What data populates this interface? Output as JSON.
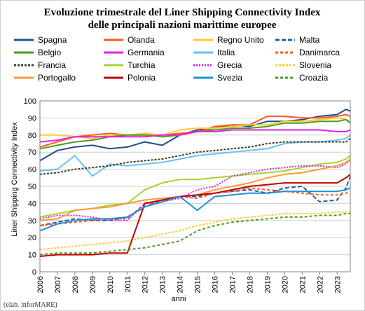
{
  "credit": "(elab. inforMARE)",
  "chart_data": {
    "type": "line",
    "title": "Evoluzione trimestrale del Liner Shipping Connectivity Index",
    "subtitle": "delle principali nazioni marittime europee",
    "xlabel": "anni",
    "ylabel": "Liner Shipping Connectivity Index",
    "ylim": [
      0,
      100
    ],
    "yticks": [
      0,
      10,
      20,
      30,
      40,
      50,
      60,
      70,
      80,
      90,
      100
    ],
    "xticks": [
      "2006",
      "2007",
      "2008",
      "2009",
      "2010",
      "2011",
      "2012",
      "2013",
      "2014",
      "2015",
      "2016",
      "2017",
      "2018",
      "2019",
      "2020",
      "2021",
      "2022",
      "2023"
    ],
    "xlim": [
      2006,
      2023.75
    ],
    "grid": true,
    "legend_position": "top",
    "series": [
      {
        "name": "Spagna",
        "color": "#1f4e8c",
        "dash": "",
        "x": [
          2006,
          2007,
          2008,
          2009,
          2010,
          2011,
          2012,
          2013,
          2014,
          2015,
          2016,
          2017,
          2018,
          2019,
          2020,
          2021,
          2022,
          2023,
          2023.5,
          2023.75
        ],
        "values": [
          65,
          71,
          73,
          74,
          72,
          73,
          76,
          74,
          80,
          83,
          84,
          86,
          85,
          88,
          88,
          89,
          91,
          92,
          95,
          94
        ]
      },
      {
        "name": "Olanda",
        "color": "#ff5a1f",
        "dash": "",
        "x": [
          2006,
          2007,
          2008,
          2009,
          2010,
          2011,
          2012,
          2013,
          2014,
          2015,
          2016,
          2017,
          2018,
          2019,
          2020,
          2021,
          2022,
          2023,
          2023.5,
          2023.75
        ],
        "values": [
          73,
          76,
          79,
          80,
          81,
          80,
          80,
          80,
          81,
          82,
          85,
          86,
          86,
          91,
          91,
          90,
          90,
          91,
          92,
          91
        ]
      },
      {
        "name": "Regno Unito",
        "color": "#ffcc33",
        "dash": "",
        "x": [
          2006,
          2007,
          2008,
          2009,
          2010,
          2011,
          2012,
          2013,
          2014,
          2015,
          2016,
          2017,
          2018,
          2019,
          2020,
          2021,
          2022,
          2023,
          2023.5,
          2023.75
        ],
        "values": [
          80,
          80,
          79,
          78,
          80,
          80,
          81,
          80,
          83,
          84,
          84,
          85,
          86,
          86,
          88,
          88,
          89,
          90,
          89,
          88
        ]
      },
      {
        "name": "Malta",
        "color": "#1f5fa6",
        "dash": "6,3",
        "x": [
          2006,
          2007,
          2008,
          2009,
          2010,
          2011,
          2012,
          2013,
          2014,
          2015,
          2016,
          2017,
          2018,
          2019,
          2020,
          2021,
          2022,
          2023,
          2023.5,
          2023.75
        ],
        "values": [
          27,
          29,
          31,
          30,
          30,
          32,
          38,
          42,
          44,
          44,
          46,
          47,
          48,
          46,
          49,
          50,
          41,
          42,
          49,
          56
        ]
      },
      {
        "name": "Belgio",
        "color": "#4e9a1f",
        "dash": "",
        "x": [
          2006,
          2007,
          2008,
          2009,
          2010,
          2011,
          2012,
          2013,
          2014,
          2015,
          2016,
          2017,
          2018,
          2019,
          2020,
          2021,
          2022,
          2023,
          2023.5,
          2023.75
        ],
        "values": [
          72,
          74,
          76,
          77,
          79,
          80,
          80,
          79,
          80,
          82,
          83,
          84,
          84,
          85,
          87,
          87,
          88,
          88,
          89,
          87
        ]
      },
      {
        "name": "Germania",
        "color": "#e61ee6",
        "dash": "",
        "x": [
          2006,
          2007,
          2008,
          2009,
          2010,
          2011,
          2012,
          2013,
          2014,
          2015,
          2016,
          2017,
          2018,
          2019,
          2020,
          2021,
          2022,
          2023,
          2023.5,
          2023.75
        ],
        "values": [
          76,
          77,
          79,
          79,
          79,
          79,
          79,
          80,
          80,
          82,
          82,
          83,
          83,
          83,
          83,
          83,
          83,
          82,
          82,
          83
        ]
      },
      {
        "name": "Italia",
        "color": "#66c2ff",
        "dash": "",
        "x": [
          2006,
          2007,
          2008,
          2009,
          2010,
          2011,
          2012,
          2013,
          2014,
          2015,
          2016,
          2017,
          2018,
          2019,
          2020,
          2021,
          2022,
          2023,
          2023.5,
          2023.75
        ],
        "values": [
          59,
          60,
          68,
          56,
          63,
          62,
          63,
          64,
          66,
          68,
          69,
          70,
          71,
          72,
          75,
          76,
          76,
          77,
          78,
          80
        ]
      },
      {
        "name": "Danimarca",
        "color": "#ff5a1f",
        "dash": "4,3",
        "x": [
          2006,
          2007,
          2008,
          2009,
          2010,
          2011,
          2012,
          2013,
          2014,
          2015,
          2016,
          2017,
          2018,
          2019,
          2020,
          2021,
          2022,
          2023,
          2023.5,
          2023.75
        ],
        "values": [
          27,
          28,
          29,
          30,
          31,
          31,
          40,
          41,
          44,
          43,
          46,
          47,
          49,
          48,
          47,
          46,
          45,
          45,
          46,
          47
        ]
      },
      {
        "name": "Francia",
        "color": "#3d3d1f",
        "dash": "3,2",
        "x": [
          2006,
          2007,
          2008,
          2009,
          2010,
          2011,
          2012,
          2013,
          2014,
          2015,
          2016,
          2017,
          2018,
          2019,
          2020,
          2021,
          2022,
          2023,
          2023.5,
          2023.75
        ],
        "values": [
          57,
          58,
          60,
          61,
          62,
          64,
          65,
          66,
          68,
          70,
          71,
          72,
          73,
          75,
          76,
          76,
          76,
          76,
          76,
          78
        ]
      },
      {
        "name": "Turchia",
        "color": "#a8d42a",
        "dash": "",
        "x": [
          2006,
          2007,
          2008,
          2009,
          2010,
          2011,
          2012,
          2013,
          2014,
          2015,
          2016,
          2017,
          2018,
          2019,
          2020,
          2021,
          2022,
          2023,
          2023.5,
          2023.75
        ],
        "values": [
          32,
          34,
          36,
          37,
          39,
          40,
          48,
          52,
          54,
          54,
          55,
          56,
          57,
          58,
          59,
          61,
          63,
          64,
          66,
          68
        ]
      },
      {
        "name": "Grecia",
        "color": "#e61ee6",
        "dash": "2,2",
        "x": [
          2006,
          2007,
          2008,
          2009,
          2010,
          2011,
          2012,
          2013,
          2014,
          2015,
          2016,
          2017,
          2018,
          2019,
          2020,
          2021,
          2022,
          2023,
          2023.5,
          2023.75
        ],
        "values": [
          31,
          33,
          33,
          32,
          30,
          30,
          40,
          41,
          43,
          48,
          50,
          56,
          58,
          60,
          61,
          62,
          62,
          61,
          63,
          65
        ]
      },
      {
        "name": "Slovenia",
        "color": "#ffcc33",
        "dash": "3,2",
        "x": [
          2006,
          2007,
          2008,
          2009,
          2010,
          2011,
          2012,
          2013,
          2014,
          2015,
          2016,
          2017,
          2018,
          2019,
          2020,
          2021,
          2022,
          2023,
          2023.5,
          2023.75
        ],
        "values": [
          13,
          14,
          15,
          16,
          17,
          18,
          20,
          22,
          24,
          27,
          29,
          31,
          32,
          33,
          34,
          34,
          34,
          35,
          35,
          35
        ]
      },
      {
        "name": "Portogallo",
        "color": "#ff9933",
        "dash": "",
        "x": [
          2006,
          2007,
          2008,
          2009,
          2010,
          2011,
          2012,
          2013,
          2014,
          2015,
          2016,
          2017,
          2018,
          2019,
          2020,
          2021,
          2022,
          2023,
          2023.5,
          2023.75
        ],
        "values": [
          30,
          31,
          36,
          37,
          38,
          40,
          42,
          43,
          44,
          45,
          48,
          50,
          52,
          55,
          57,
          58,
          60,
          62,
          64,
          66
        ]
      },
      {
        "name": "Polonia",
        "color": "#c00000",
        "dash": "",
        "x": [
          2006,
          2007,
          2008,
          2009,
          2010,
          2011,
          2012,
          2013,
          2014,
          2015,
          2016,
          2017,
          2018,
          2019,
          2020,
          2021,
          2022,
          2023,
          2023.5,
          2023.75
        ],
        "values": [
          9,
          10,
          10,
          10,
          11,
          11,
          40,
          42,
          44,
          45,
          46,
          48,
          50,
          51,
          52,
          52,
          52,
          52,
          55,
          57
        ]
      },
      {
        "name": "Svezia",
        "color": "#1f8fd6",
        "dash": "",
        "x": [
          2006,
          2007,
          2008,
          2009,
          2010,
          2011,
          2012,
          2013,
          2014,
          2015,
          2016,
          2017,
          2018,
          2019,
          2020,
          2021,
          2022,
          2023,
          2023.5,
          2023.75
        ],
        "values": [
          24,
          28,
          30,
          31,
          31,
          32,
          38,
          41,
          44,
          36,
          44,
          45,
          46,
          46,
          47,
          47,
          47,
          47,
          48,
          49
        ]
      },
      {
        "name": "Croazia",
        "color": "#4e9a1f",
        "dash": "4,3",
        "x": [
          2006,
          2007,
          2008,
          2009,
          2010,
          2011,
          2012,
          2013,
          2014,
          2015,
          2016,
          2017,
          2018,
          2019,
          2020,
          2021,
          2022,
          2023,
          2023.5,
          2023.75
        ],
        "values": [
          10,
          11,
          11,
          11,
          12,
          13,
          14,
          16,
          18,
          24,
          27,
          29,
          30,
          31,
          32,
          32,
          33,
          33,
          34,
          34
        ]
      }
    ]
  }
}
